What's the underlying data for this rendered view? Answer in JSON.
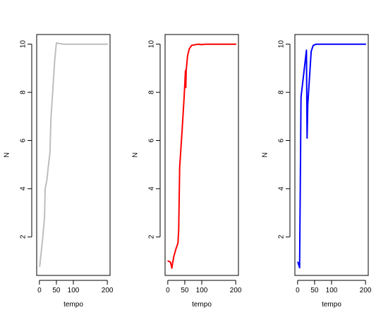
{
  "chart_data": [
    {
      "type": "line",
      "xlabel": "tempo",
      "ylabel": "N",
      "xlim": [
        -8,
        208
      ],
      "ylim": [
        0.4,
        10.4
      ],
      "xticks": [
        0,
        50,
        100,
        200
      ],
      "yticks": [
        2,
        4,
        6,
        8,
        10
      ],
      "grid": false,
      "series": [
        {
          "color": "#bebebe",
          "points": [
            [
              1,
              0.78
            ],
            [
              10,
              2.0
            ],
            [
              15,
              2.8
            ],
            [
              17,
              4.0
            ],
            [
              22,
              4.35
            ],
            [
              26,
              4.9
            ],
            [
              31,
              5.5
            ],
            [
              34,
              6.9
            ],
            [
              40,
              8.2
            ],
            [
              45,
              9.3
            ],
            [
              50,
              10.05
            ],
            [
              70,
              10.0
            ],
            [
              200,
              10.0
            ]
          ]
        }
      ]
    },
    {
      "type": "line",
      "xlabel": "tempo",
      "ylabel": "N",
      "xlim": [
        -8,
        208
      ],
      "ylim": [
        0.4,
        10.4
      ],
      "xticks": [
        0,
        50,
        100,
        200
      ],
      "yticks": [
        2,
        4,
        6,
        8,
        10
      ],
      "grid": false,
      "series": [
        {
          "color": "#ff0000",
          "points": [
            [
              1,
              1.0
            ],
            [
              8,
              0.95
            ],
            [
              12,
              0.7
            ],
            [
              14,
              0.9
            ],
            [
              18,
              1.2
            ],
            [
              24,
              1.5
            ],
            [
              30,
              1.75
            ],
            [
              32,
              2.3
            ],
            [
              35,
              4.9
            ],
            [
              42,
              6.4
            ],
            [
              48,
              7.8
            ],
            [
              52,
              8.9
            ],
            [
              53,
              8.2
            ],
            [
              54,
              8.9
            ],
            [
              58,
              9.5
            ],
            [
              63,
              9.8
            ],
            [
              70,
              9.95
            ],
            [
              90,
              10.0
            ],
            [
              100,
              9.98
            ],
            [
              110,
              10.0
            ],
            [
              200,
              10.0
            ]
          ]
        }
      ]
    },
    {
      "type": "line",
      "xlabel": "tempo",
      "ylabel": "N",
      "xlim": [
        -8,
        208
      ],
      "ylim": [
        0.4,
        10.4
      ],
      "xticks": [
        0,
        50,
        100,
        200
      ],
      "yticks": [
        2,
        4,
        6,
        8,
        10
      ],
      "grid": false,
      "series": [
        {
          "color": "#0000ff",
          "points": [
            [
              1,
              0.95
            ],
            [
              6,
              0.72
            ],
            [
              10,
              7.8
            ],
            [
              26,
              9.75
            ],
            [
              28,
              6.1
            ],
            [
              30,
              7.5
            ],
            [
              40,
              9.7
            ],
            [
              46,
              9.95
            ],
            [
              55,
              10.0
            ],
            [
              200,
              10.0
            ]
          ]
        }
      ]
    }
  ]
}
